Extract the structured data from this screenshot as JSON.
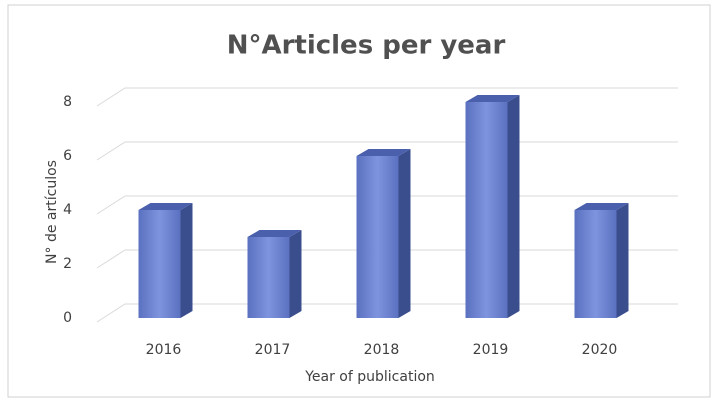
{
  "chart_data": {
    "type": "bar",
    "title": "N°Articles per year",
    "categories": [
      "2016",
      "2017",
      "2018",
      "2019",
      "2020"
    ],
    "values": [
      4,
      3,
      6,
      8,
      4
    ],
    "color": "#6a82d0",
    "xlabel": "Year of publication",
    "ylabel": "N° de artículos",
    "ylim": [
      0,
      8
    ],
    "yticks": [
      0,
      2,
      4,
      6,
      8
    ],
    "grid": true
  }
}
